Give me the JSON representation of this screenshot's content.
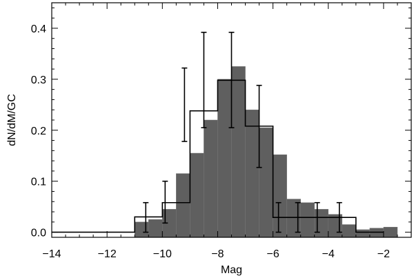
{
  "chart_data": {
    "type": "bar",
    "xlabel": "Mag",
    "ylabel": "dN/dM/GC",
    "xlim": [
      -14,
      -1
    ],
    "ylim": [
      -0.01,
      0.45
    ],
    "x_ticks": [
      -14,
      -12,
      -10,
      -8,
      -6,
      -4,
      -2
    ],
    "x_tick_labels": [
      "−14",
      "−12",
      "−10",
      "−8",
      "−6",
      "−4",
      "−2"
    ],
    "y_ticks": [
      0.0,
      0.1,
      0.2,
      0.3,
      0.4
    ],
    "y_tick_labels": [
      "0.0",
      "0.1",
      "0.2",
      "0.3",
      "0.4"
    ],
    "grid": false,
    "filled_histogram": {
      "bin_width": 0.5,
      "bin_left_edges": [
        -11.0,
        -10.5,
        -10.0,
        -9.5,
        -9.0,
        -8.5,
        -8.0,
        -7.5,
        -7.0,
        -6.5,
        -6.0,
        -5.5,
        -5.0,
        -4.5,
        -4.0,
        -3.5,
        -3.0,
        -2.5,
        -2.0
      ],
      "values": [
        0.02,
        0.025,
        0.045,
        0.115,
        0.155,
        0.22,
        0.3,
        0.325,
        0.24,
        0.205,
        0.152,
        0.065,
        0.058,
        0.045,
        0.035,
        0.015,
        0.005,
        0.008,
        0.01
      ],
      "color": "#5f5f5f"
    },
    "step_histogram": {
      "bin_width": 1.0,
      "bin_left_edges": [
        -14.0,
        -13.0,
        -12.0,
        -11.0,
        -10.0,
        -9.0,
        -8.0,
        -7.0,
        -6.0,
        -5.0,
        -4.0,
        -3.0
      ],
      "values": [
        0.0,
        0.0,
        0.0,
        0.03,
        0.058,
        0.238,
        0.298,
        0.208,
        0.029,
        0.029,
        0.029,
        0.0
      ],
      "color": "#000000"
    },
    "error_bars": [
      {
        "x": -10.6,
        "y": 0.03,
        "low": 0.0,
        "high": 0.058
      },
      {
        "x": -9.9,
        "y": 0.058,
        "low": 0.018,
        "high": 0.1
      },
      {
        "x": -9.2,
        "y": 0.238,
        "low": 0.178,
        "high": 0.322
      },
      {
        "x": -8.5,
        "y": 0.298,
        "low": 0.205,
        "high": 0.392
      },
      {
        "x": -7.5,
        "y": 0.298,
        "low": 0.205,
        "high": 0.392
      },
      {
        "x": -6.5,
        "y": 0.208,
        "low": 0.127,
        "high": 0.288
      },
      {
        "x": -5.8,
        "y": 0.029,
        "low": 0.0,
        "high": 0.058
      },
      {
        "x": -5.1,
        "y": 0.029,
        "low": 0.0,
        "high": 0.058
      },
      {
        "x": -4.4,
        "y": 0.029,
        "low": 0.0,
        "high": 0.058
      },
      {
        "x": -3.6,
        "y": 0.029,
        "low": 0.0,
        "high": 0.058
      }
    ]
  }
}
